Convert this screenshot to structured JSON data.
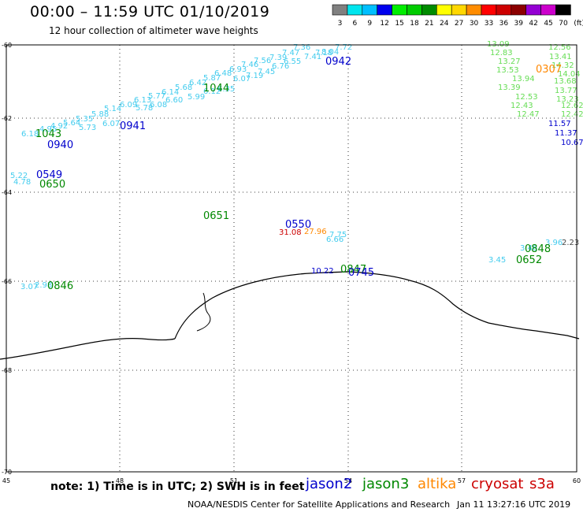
{
  "title": "00:00 – 11:59 UTC 01/10/2019",
  "subtitle": "12 hour collection of altimeter wave heights",
  "note": "note:  1) Time is in UTC;  2) SWH is in feet",
  "credit": "NOAA/NESDIS Center for Satellite Applications and Research",
  "stamp": "Jan 11 13:27:16 UTC 2019",
  "units": "(ft)",
  "satellites": [
    {
      "name": "jason2",
      "color": "#0000cc"
    },
    {
      "name": "jason3",
      "color": "#008800"
    },
    {
      "name": "altika",
      "color": "#ff8800"
    },
    {
      "name": "cryosat",
      "color": "#cc0000"
    },
    {
      "name": "s3a",
      "color": "#cc0000"
    }
  ],
  "legend": [
    {
      "label": "3",
      "color": "#808080"
    },
    {
      "label": "6",
      "color": "#00e5ee"
    },
    {
      "label": "9",
      "color": "#00bfff"
    },
    {
      "label": "12",
      "color": "#0000ee"
    },
    {
      "label": "15",
      "color": "#00ee00"
    },
    {
      "label": "18",
      "color": "#00cc00"
    },
    {
      "label": "21",
      "color": "#008b00"
    },
    {
      "label": "24",
      "color": "#ffff00"
    },
    {
      "label": "27",
      "color": "#ffd700"
    },
    {
      "label": "30",
      "color": "#ff8c00"
    },
    {
      "label": "33",
      "color": "#ff0000"
    },
    {
      "label": "36",
      "color": "#cd0000"
    },
    {
      "label": "39",
      "color": "#8b0000"
    },
    {
      "label": "42",
      "color": "#9400d3"
    },
    {
      "label": "45",
      "color": "#cc00cc"
    },
    {
      "label": "70",
      "color": "#000000"
    }
  ],
  "lat_labels": [
    "-60",
    "-62",
    "-64",
    "-66",
    "-68",
    "-70"
  ],
  "lon_labels": [
    "45",
    "48",
    "51",
    "54",
    "57",
    "60"
  ],
  "wave_labels": [
    {
      "t": "7.36",
      "c": "#44ccee"
    },
    {
      "t": "7.72",
      "c": "#44ccee"
    },
    {
      "t": "8.04",
      "c": "#44ccee"
    },
    {
      "t": "7.47",
      "c": "#44ccee"
    },
    {
      "t": "7.39",
      "c": "#44ccee"
    },
    {
      "t": "7.56",
      "c": "#44ccee"
    },
    {
      "t": "7.46",
      "c": "#44ccee"
    },
    {
      "t": "6.93",
      "c": "#44ccee"
    },
    {
      "t": "6.48",
      "c": "#44ccee"
    },
    {
      "t": "5.87",
      "c": "#44ccee"
    },
    {
      "t": "6.42",
      "c": "#44ccee"
    },
    {
      "t": "5.68",
      "c": "#44ccee"
    },
    {
      "t": "6.14",
      "c": "#44ccee"
    },
    {
      "t": "5.77",
      "c": "#44ccee"
    },
    {
      "t": "6.13",
      "c": "#44ccee"
    },
    {
      "t": "6.09",
      "c": "#44ccee"
    },
    {
      "t": "5.14",
      "c": "#44ccee"
    },
    {
      "t": "5.88",
      "c": "#44ccee"
    },
    {
      "t": "5.35",
      "c": "#44ccee"
    },
    {
      "t": "5.64",
      "c": "#44ccee"
    },
    {
      "t": "4.92",
      "c": "#44ccee"
    },
    {
      "t": "6.18",
      "c": "#44ccee"
    },
    {
      "t": "4.95",
      "c": "#44ccee"
    },
    {
      "t": "5.73",
      "c": "#44ccee"
    },
    {
      "t": "6.07",
      "c": "#44ccee"
    },
    {
      "t": "5.78",
      "c": "#44ccee"
    },
    {
      "t": "6.08",
      "c": "#44ccee"
    },
    {
      "t": "6.60",
      "c": "#44ccee"
    },
    {
      "t": "5.99",
      "c": "#44ccee"
    },
    {
      "t": "6.12",
      "c": "#44ccee"
    },
    {
      "t": "6.35",
      "c": "#44ccee"
    },
    {
      "t": "6.07",
      "c": "#44ccee"
    },
    {
      "t": "7.19",
      "c": "#44ccee"
    },
    {
      "t": "7.45",
      "c": "#44ccee"
    },
    {
      "t": "6.76",
      "c": "#44ccee"
    },
    {
      "t": "6.55",
      "c": "#44ccee"
    },
    {
      "t": "7.41",
      "c": "#44ccee"
    },
    {
      "t": "7.18",
      "c": "#44ccee"
    },
    {
      "t": "5.22",
      "c": "#44ccee"
    },
    {
      "t": "4.78",
      "c": "#44ccee"
    },
    {
      "t": "10.22",
      "c": "#0000cc"
    },
    {
      "t": "31.08",
      "c": "#cc0000"
    },
    {
      "t": "27.96",
      "c": "#ff8800"
    },
    {
      "t": "7.75",
      "c": "#44ccee"
    },
    {
      "t": "6.66",
      "c": "#44ccee"
    },
    {
      "t": "3.46",
      "c": "#44ccee"
    },
    {
      "t": "3.96",
      "c": "#44ccee"
    },
    {
      "t": "2.23",
      "c": "#444444"
    },
    {
      "t": "3.45",
      "c": "#44ccee"
    },
    {
      "t": "3.07",
      "c": "#44ccee"
    },
    {
      "t": "2.98",
      "c": "#44ccee"
    },
    {
      "t": "13.09",
      "c": "#66dd55"
    },
    {
      "t": "12.83",
      "c": "#66dd55"
    },
    {
      "t": "13.27",
      "c": "#66dd55"
    },
    {
      "t": "13.53",
      "c": "#66dd55"
    },
    {
      "t": "13.94",
      "c": "#66dd55"
    },
    {
      "t": "13.39",
      "c": "#66dd55"
    },
    {
      "t": "12.53",
      "c": "#66dd55"
    },
    {
      "t": "12.43",
      "c": "#66dd55"
    },
    {
      "t": "12.47",
      "c": "#66dd55"
    },
    {
      "t": "12.56",
      "c": "#66dd55"
    },
    {
      "t": "13.41",
      "c": "#66dd55"
    },
    {
      "t": "14.32",
      "c": "#66dd55"
    },
    {
      "t": "14.04",
      "c": "#66dd55"
    },
    {
      "t": "13.68",
      "c": "#66dd55"
    },
    {
      "t": "13.77",
      "c": "#66dd55"
    },
    {
      "t": "13.23",
      "c": "#66dd55"
    },
    {
      "t": "12.62",
      "c": "#66dd55"
    },
    {
      "t": "12.42",
      "c": "#66dd55"
    },
    {
      "t": "11.57",
      "c": "#0000cc"
    },
    {
      "t": "11.37",
      "c": "#0000cc"
    },
    {
      "t": "10.67",
      "c": "#0000cc"
    }
  ],
  "time_labels": [
    {
      "t": "0942",
      "c": "#0000cc"
    },
    {
      "t": "1044",
      "c": "#008800"
    },
    {
      "t": "0941",
      "c": "#0000cc"
    },
    {
      "t": "1043",
      "c": "#008800"
    },
    {
      "t": "0940",
      "c": "#0000cc"
    },
    {
      "t": "0549",
      "c": "#0000cc"
    },
    {
      "t": "0650",
      "c": "#008800"
    },
    {
      "t": "0651",
      "c": "#008800"
    },
    {
      "t": "0550",
      "c": "#0000cc"
    },
    {
      "t": "0847",
      "c": "#008800"
    },
    {
      "t": "0745",
      "c": "#0000cc"
    },
    {
      "t": "0846",
      "c": "#008800"
    },
    {
      "t": "0848",
      "c": "#008800"
    },
    {
      "t": "0652",
      "c": "#008800"
    },
    {
      "t": "0307",
      "c": "#ff8800"
    }
  ]
}
